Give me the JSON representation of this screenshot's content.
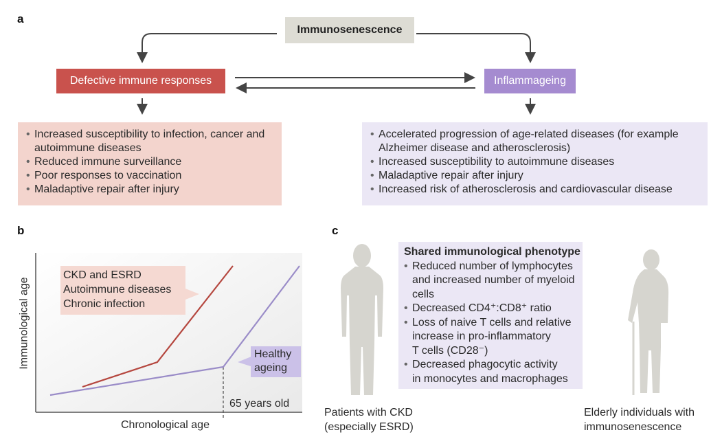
{
  "panel_a": {
    "label": "a",
    "top": "Immunosenescence",
    "left": "Defective immune responses",
    "right": "Inflammageing",
    "left_items": [
      "Increased susceptibility to infection, cancer and autoimmune diseases",
      "Reduced immune surveillance",
      "Poor responses to vaccination",
      "Maladaptive repair after injury"
    ],
    "right_items": [
      "Accelerated progression of age-related diseases (for example Alzheimer disease and atherosclerosis)",
      "Increased susceptibility to autoimmune diseases",
      "Maladaptive repair after injury",
      "Increased risk of atherosclerosis and cardiovascular disease"
    ],
    "colors": {
      "top": "#dddcd4",
      "left": "#c9524d",
      "right": "#a58bd0",
      "left_list": "#f3d4cd",
      "right_list": "#ebe7f5",
      "arrow": "#444444"
    }
  },
  "panel_b": {
    "label": "b",
    "xlabel": "Chronological age",
    "ylabel": "Immunological age",
    "marker": "65 years old",
    "disease_label": [
      "CKD and ESRD",
      "Autoimmune diseases",
      "Chronic infection"
    ],
    "healthy_label": [
      "Healthy",
      "ageing"
    ],
    "colors": {
      "disease": "#b5473f",
      "healthy": "#9a8cc8"
    }
  },
  "panel_c": {
    "label": "c",
    "title": "Shared immunological phenotype",
    "items": [
      [
        "Reduced number of lymphocytes",
        "and increased number of myeloid",
        "cells"
      ],
      [
        "Decreased CD4⁺:CD8⁺ ratio"
      ],
      [
        "Loss of naive T cells and relative",
        "increase in pro-inflammatory",
        "T cells (CD28⁻)"
      ],
      [
        "Decreased phagocytic activity",
        "in monocytes and macrophages"
      ]
    ],
    "left_caption": [
      "Patients with CKD",
      "(especially ESRD)"
    ],
    "right_caption": [
      "Elderly individuals with",
      "immunosenescence"
    ]
  }
}
